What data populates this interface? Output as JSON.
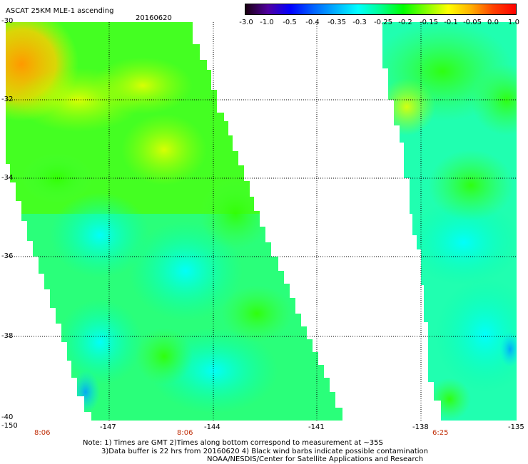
{
  "header": {
    "title": "ASCAT 25KM MLE-1 ascending",
    "date": "20160620"
  },
  "colorbar": {
    "labels": [
      "-3.0",
      "-1.0",
      "-0.5",
      "-0.4",
      "-0.35",
      "-0.3",
      "-0.25",
      "-0.2",
      "-0.15",
      "-0.1",
      "-0.05",
      "0.0",
      "1.0"
    ],
    "colors": [
      "#1a0010",
      "#5000a0",
      "#0000ff",
      "#0060ff",
      "#00b0ff",
      "#00ffff",
      "#00ff90",
      "#00ff00",
      "#80ff00",
      "#ffff00",
      "#ffb000",
      "#ff4000",
      "#ff0000"
    ]
  },
  "axes": {
    "lat_labels": [
      "-30",
      "-32",
      "-34",
      "-36",
      "-38",
      "-40"
    ],
    "lon_labels": [
      "-150",
      "-147",
      "-144",
      "-141",
      "-138",
      "-135"
    ]
  },
  "time_labels": [
    "8:06",
    "8:06",
    "6:25"
  ],
  "notes": {
    "line1": "Note: 1) Times are GMT 2)Times along bottom correspond to measurement at ~35S",
    "line2": "3)Data buffer is 22 hrs from 20160620 4) Black wind barbs indicate possible contamination",
    "line3": "NOAA/NESDIS/Center for Satellite Applications and Research"
  }
}
